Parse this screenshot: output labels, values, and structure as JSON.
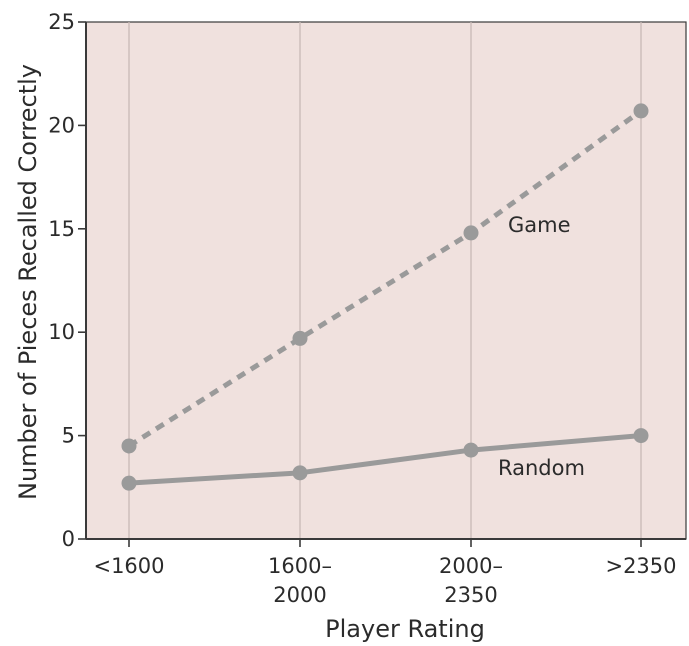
{
  "chart_data": {
    "type": "line",
    "xlabel": "Player Rating",
    "ylabel": "Number of Pieces Recalled Correctly",
    "categories": [
      {
        "lines": [
          "<1600"
        ]
      },
      {
        "lines": [
          "1600–",
          "2000"
        ]
      },
      {
        "lines": [
          "2000–",
          "2350"
        ]
      },
      {
        "lines": [
          ">2350"
        ]
      }
    ],
    "ylim": [
      0,
      25
    ],
    "yticks": [
      0,
      5,
      10,
      15,
      20,
      25
    ],
    "series": [
      {
        "name": "Game",
        "style": "dotted",
        "values": [
          4.5,
          9.7,
          14.8,
          20.7
        ]
      },
      {
        "name": "Random",
        "style": "solid",
        "values": [
          2.7,
          3.2,
          4.3,
          5.0
        ]
      }
    ],
    "colors": {
      "plot_background": "#f0e1de",
      "line": "#9a9a9a",
      "gridline": "#c9b9b6",
      "axis": "#3a3a3a"
    }
  }
}
